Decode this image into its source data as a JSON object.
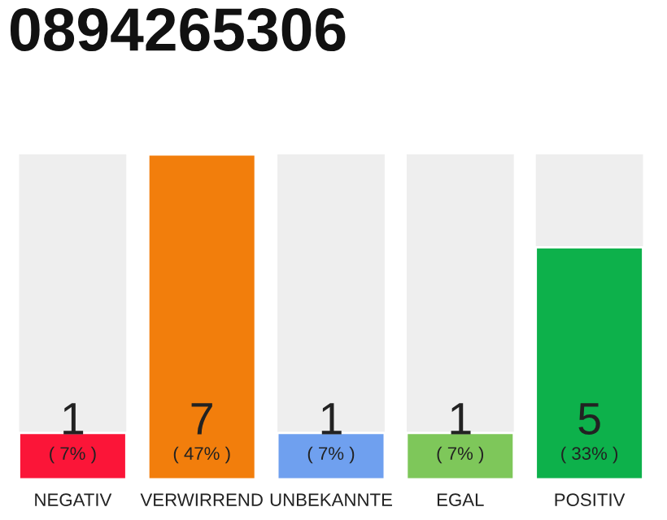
{
  "chart_data": {
    "type": "bar",
    "title": "0894265306",
    "categories": [
      "NEGATIV",
      "VERWIRREND",
      "UNBEKANNTE",
      "EGAL",
      "POSITIV"
    ],
    "values": [
      1,
      7,
      1,
      1,
      5
    ],
    "colors": [
      "#fb1538",
      "#f27e0c",
      "#6fa0ef",
      "#7ec75a",
      "#0db14b"
    ],
    "data_labels": true,
    "annotations": [
      "( 7% )",
      "( 47% )",
      "( 7% )",
      "( 7% )",
      "( 33% )"
    ],
    "ylim": [
      0,
      7
    ],
    "tick_labels": "x",
    "grid": false,
    "legend": false
  }
}
